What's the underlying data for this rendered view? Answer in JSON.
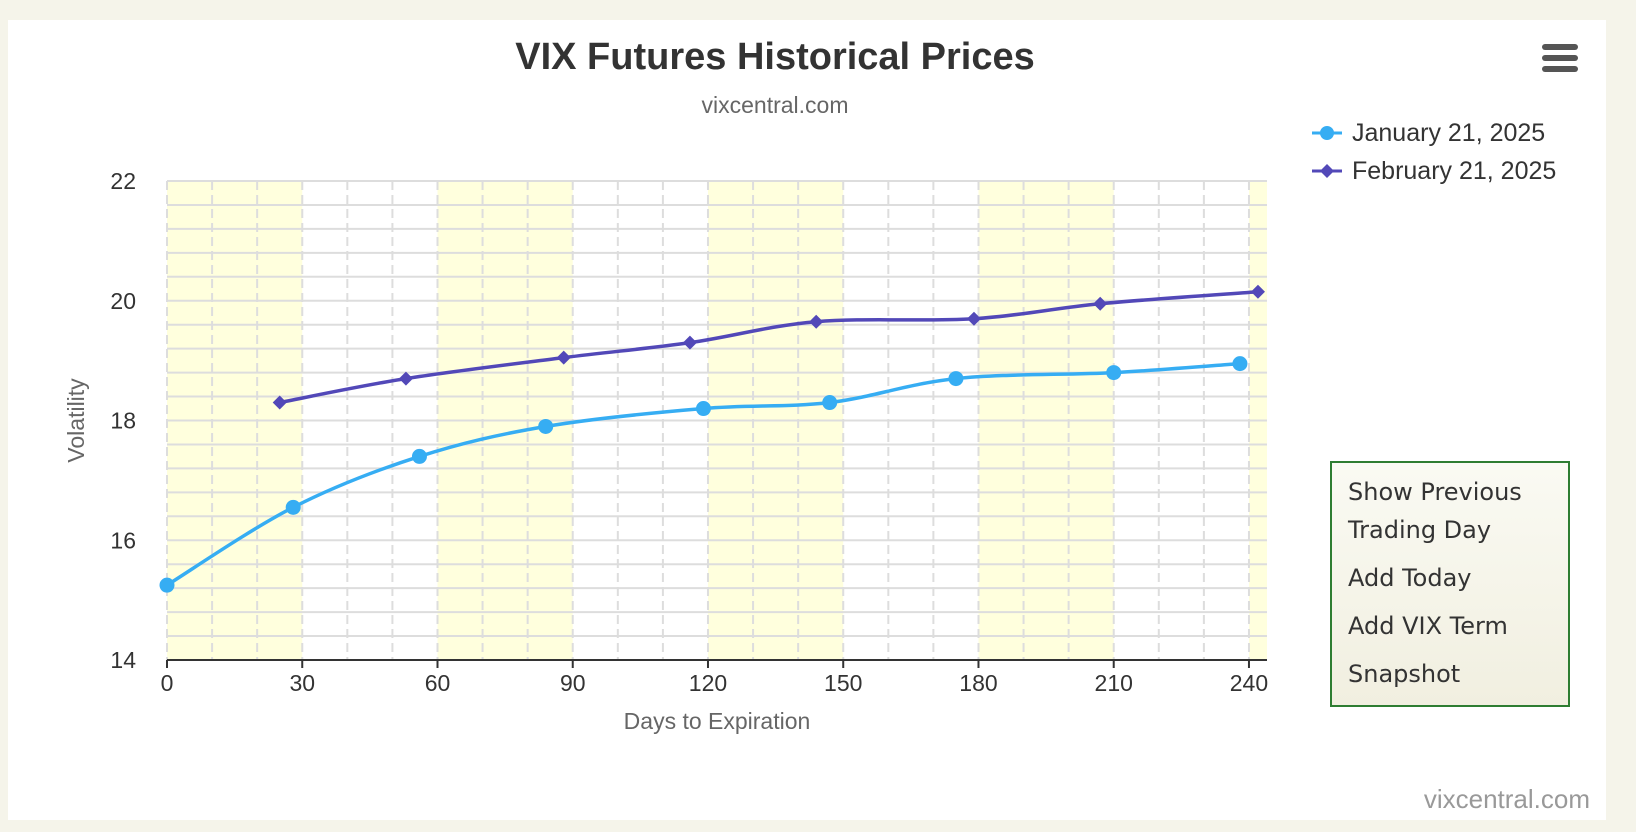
{
  "header": {
    "title": "VIX Futures Historical Prices",
    "subtitle": "vixcentral.com",
    "menu_icon": "hamburger-menu-icon"
  },
  "legend": [
    {
      "label": "January 21, 2025",
      "marker": "circle"
    },
    {
      "label": "February 21, 2025",
      "marker": "diamond"
    }
  ],
  "side_menu": {
    "items": [
      "Show Previous Trading Day",
      "Add Today",
      "Add VIX Term",
      "Snapshot"
    ]
  },
  "credit": "vixcentral.com",
  "colors": {
    "series_jan": "#36adf3",
    "series_feb": "#5248b8",
    "band": "#ffffdd",
    "grid": "#dddddd"
  },
  "chart_data": {
    "type": "line",
    "title": "VIX Futures Historical Prices",
    "subtitle": "vixcentral.com",
    "xlabel": "Days to Expiration",
    "ylabel": "Volatility",
    "xlim": [
      0,
      244
    ],
    "ylim": [
      14,
      22
    ],
    "xticks": [
      0,
      30,
      60,
      90,
      120,
      150,
      180,
      210,
      240
    ],
    "yticks": [
      14,
      16,
      18,
      20,
      22
    ],
    "bands": [
      [
        0,
        30
      ],
      [
        60,
        90
      ],
      [
        120,
        150
      ],
      [
        180,
        210
      ],
      [
        240,
        244
      ]
    ],
    "grid": true,
    "legend_position": "top-right",
    "series": [
      {
        "name": "January 21, 2025",
        "marker": "circle",
        "x": [
          0,
          28,
          56,
          84,
          119,
          147,
          175,
          210,
          238
        ],
        "y": [
          15.25,
          16.55,
          17.4,
          17.9,
          18.2,
          18.3,
          18.7,
          18.8,
          18.95
        ]
      },
      {
        "name": "February 21, 2025",
        "marker": "diamond",
        "x": [
          25,
          53,
          88,
          116,
          144,
          179,
          207,
          242
        ],
        "y": [
          18.3,
          18.7,
          19.05,
          19.3,
          19.65,
          19.7,
          19.95,
          20.15
        ]
      }
    ]
  }
}
